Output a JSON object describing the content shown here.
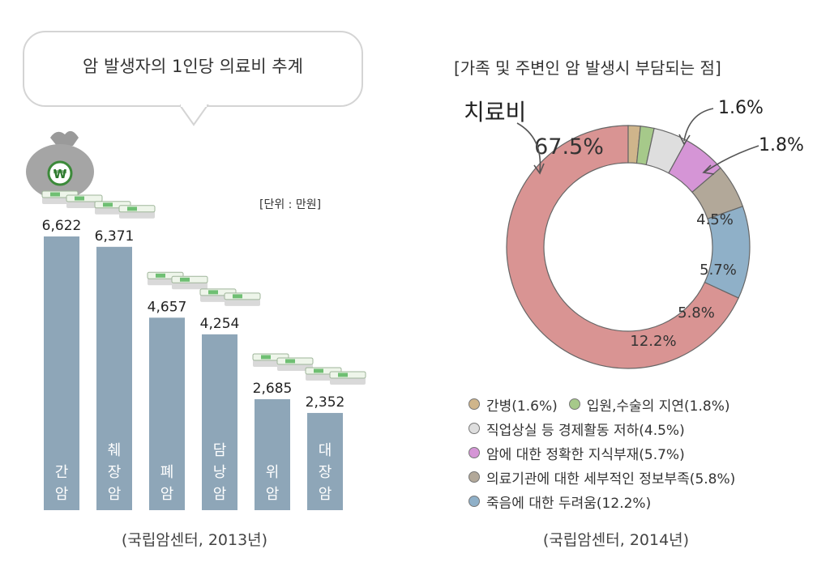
{
  "left": {
    "title": "암 발생자의 1인당 의료비 추계",
    "unit": "[단위 : 만원]",
    "source": "(국립암센터, 2013년)"
  },
  "right": {
    "title": "[가족 및 주변인 암 발생시 부담되는 점]",
    "source": "(국립암센터, 2014년)",
    "callout_main": "치료비"
  },
  "icons": {
    "money_bag": "money-bag-icon",
    "cash": "cash-stack-icon",
    "won": "₩"
  },
  "chart_data": [
    {
      "type": "bar",
      "title": "암 발생자의 1인당 의료비 추계",
      "categories": [
        "간암",
        "췌장암",
        "폐암",
        "담낭암",
        "위암",
        "대장암"
      ],
      "values": [
        6622,
        6371,
        4657,
        4254,
        2685,
        2352
      ],
      "value_labels": [
        "6,622",
        "6,371",
        "4,657",
        "4,254",
        "2,685",
        "2,352"
      ],
      "unit": "[단위 : 만원]",
      "bar_color": "#8ea6b8",
      "ylim": [
        0,
        6622
      ],
      "grid": false
    },
    {
      "type": "pie",
      "donut": true,
      "title": "[가족 및 주변인 암 발생시 부담되는 점]",
      "slices": [
        {
          "label": "치료비",
          "legend": "",
          "value": 67.5,
          "value_label": "67.5%",
          "color": "#d99493"
        },
        {
          "label": "간병",
          "legend": "간병(1.6%)",
          "value": 1.6,
          "value_label": "1.6%",
          "color": "#cfb58b"
        },
        {
          "label": "입원,수술의 지연",
          "legend": "입원,수술의 지연(1.8%)",
          "value": 1.8,
          "value_label": "1.8%",
          "color": "#a6c98a"
        },
        {
          "label": "직업상실 등 경제활동 저하",
          "legend": "직업상실 등 경제활동 저하(4.5%)",
          "value": 4.5,
          "value_label": "4.5%",
          "color": "#dedede"
        },
        {
          "label": "암에 대한 정확한 지식부재",
          "legend": "암에 대한 정확한 지식부재(5.7%)",
          "value": 5.7,
          "value_label": "5.7%",
          "color": "#d595d6"
        },
        {
          "label": "의료기관에 대한 세부적인 정보부족",
          "legend": "의료기관에 대한 세부적인 정보부족(5.8%)",
          "value": 5.8,
          "value_label": "5.8%",
          "color": "#b2a899"
        },
        {
          "label": "죽음에 대한 두려움",
          "legend": "죽음에 대한 두려움(12.2%)",
          "value": 12.2,
          "value_label": "12.2%",
          "color": "#8fb0c8"
        }
      ],
      "legend_position": "bottom-left"
    }
  ]
}
